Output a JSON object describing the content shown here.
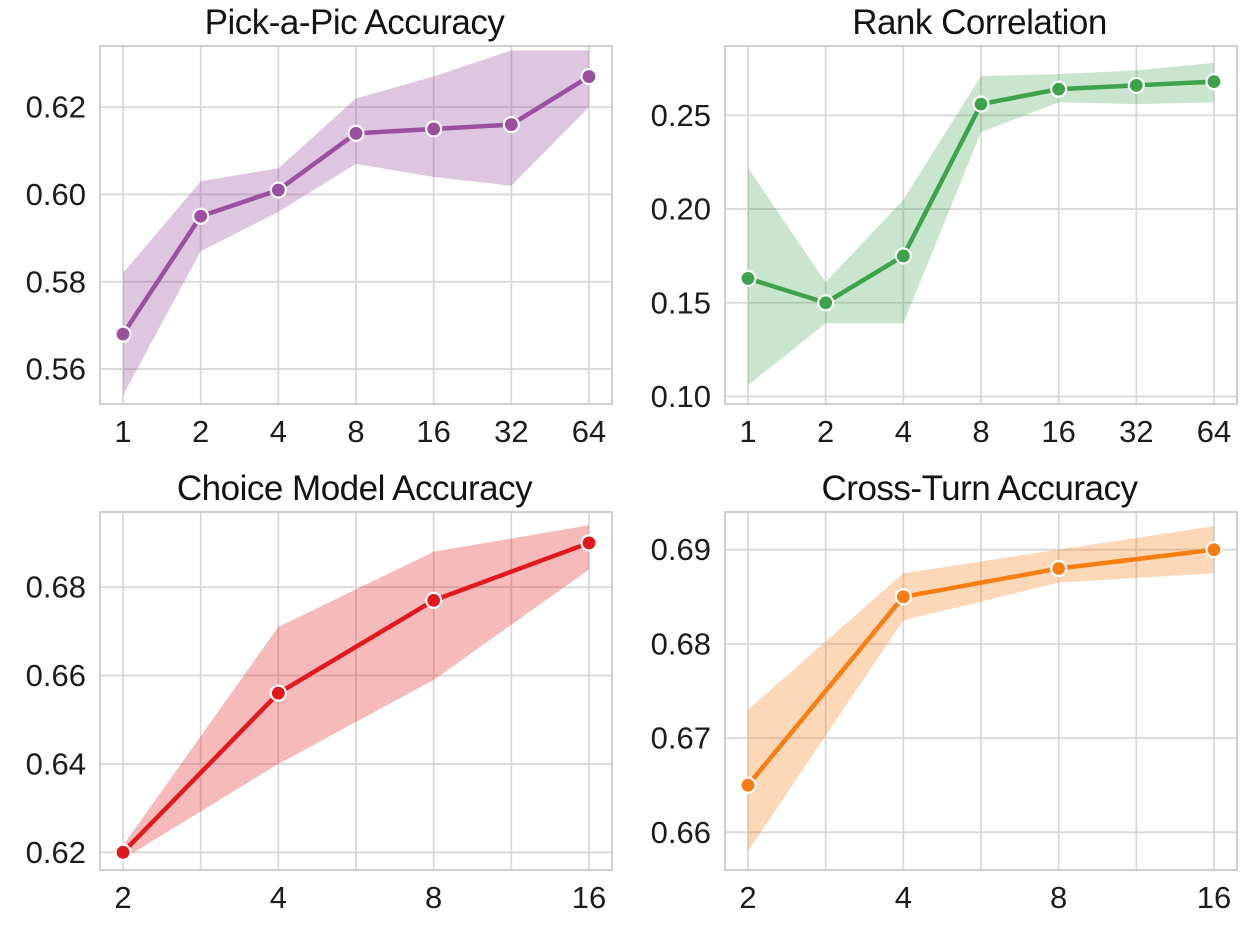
{
  "figure": {
    "background": "#ffffff",
    "grid_color": "#d8d8d8",
    "spine_color": "#cfcfcf",
    "text_color": "#1c1c1c",
    "marker_edge_color": "#ffffff"
  },
  "chart_data": [
    {
      "type": "line",
      "title": "Pick-a-Pic Accuracy",
      "color": "#9a4f9f",
      "band_opacity": 0.32,
      "x_scale": "log2",
      "x_ticks": [
        "1",
        "2",
        "4",
        "8",
        "16",
        "32",
        "64"
      ],
      "x_minor_gridlines": false,
      "values": [
        0.568,
        0.595,
        0.601,
        0.614,
        0.615,
        0.616,
        0.627
      ],
      "band_lower": [
        0.554,
        0.587,
        0.596,
        0.607,
        0.604,
        0.602,
        0.62
      ],
      "band_upper": [
        0.582,
        0.603,
        0.606,
        0.622,
        0.627,
        0.633,
        0.633
      ],
      "y_ticks": [
        0.56,
        0.58,
        0.6,
        0.62
      ],
      "y_tick_labels": [
        "0.56",
        "0.58",
        "0.60",
        "0.62"
      ],
      "ylim": [
        0.552,
        0.634
      ],
      "grid": true,
      "legend": "none"
    },
    {
      "type": "line",
      "title": "Rank Correlation",
      "color": "#3da24b",
      "band_opacity": 0.28,
      "x_scale": "log2",
      "x_ticks": [
        "1",
        "2",
        "4",
        "8",
        "16",
        "32",
        "64"
      ],
      "x_minor_gridlines": false,
      "values": [
        0.163,
        0.15,
        0.175,
        0.256,
        0.264,
        0.266,
        0.268
      ],
      "band_lower": [
        0.106,
        0.139,
        0.139,
        0.241,
        0.257,
        0.256,
        0.257
      ],
      "band_upper": [
        0.222,
        0.161,
        0.205,
        0.271,
        0.272,
        0.274,
        0.278
      ],
      "y_ticks": [
        0.1,
        0.15,
        0.2,
        0.25
      ],
      "y_tick_labels": [
        "0.10",
        "0.15",
        "0.20",
        "0.25"
      ],
      "ylim": [
        0.096,
        0.287
      ],
      "grid": true,
      "legend": "none"
    },
    {
      "type": "line",
      "title": "Choice Model Accuracy",
      "color": "#e1191f",
      "band_opacity": 0.3,
      "x_scale": "log2",
      "x_ticks": [
        "2",
        "4",
        "8",
        "16"
      ],
      "x_minor_gridlines": true,
      "values": [
        0.62,
        0.656,
        0.677,
        0.69
      ],
      "band_lower": [
        0.6185,
        0.64,
        0.659,
        0.684
      ],
      "band_upper": [
        0.6215,
        0.671,
        0.688,
        0.694
      ],
      "y_ticks": [
        0.62,
        0.64,
        0.66,
        0.68
      ],
      "y_tick_labels": [
        "0.62",
        "0.64",
        "0.66",
        "0.68"
      ],
      "ylim": [
        0.616,
        0.697
      ],
      "grid": true,
      "legend": "none"
    },
    {
      "type": "line",
      "title": "Cross-Turn Accuracy",
      "color": "#f87e14",
      "band_opacity": 0.3,
      "x_scale": "log2",
      "x_ticks": [
        "2",
        "4",
        "8",
        "16"
      ],
      "x_minor_gridlines": true,
      "values": [
        0.665,
        0.685,
        0.688,
        0.69
      ],
      "band_lower": [
        0.658,
        0.6825,
        0.6865,
        0.6875
      ],
      "band_upper": [
        0.673,
        0.6875,
        0.69,
        0.6925
      ],
      "y_ticks": [
        0.66,
        0.67,
        0.68,
        0.69
      ],
      "y_tick_labels": [
        "0.66",
        "0.67",
        "0.68",
        "0.69"
      ],
      "ylim": [
        0.656,
        0.694
      ],
      "grid": true,
      "legend": "none"
    }
  ]
}
